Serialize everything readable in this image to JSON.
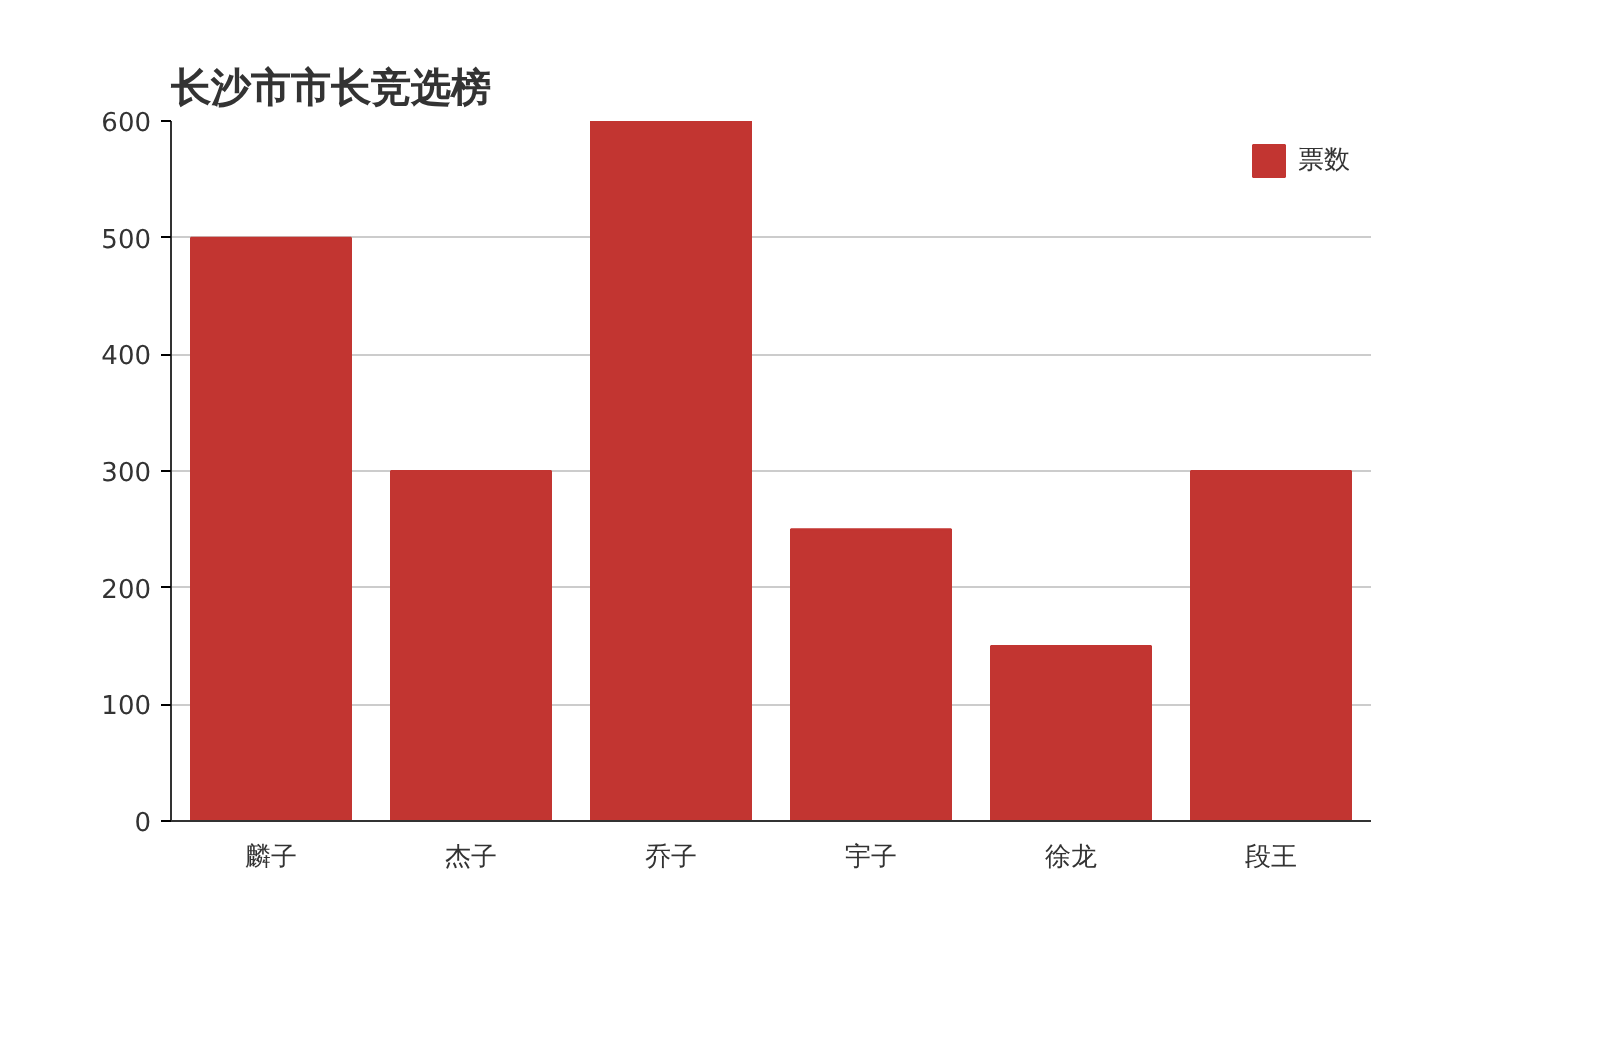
{
  "chart_data": {
    "type": "bar",
    "title": "长沙市市长竞选榜",
    "categories": [
      "麟子",
      "杰子",
      "乔子",
      "宇子",
      "徐龙",
      "段王"
    ],
    "series": [
      {
        "name": "票数",
        "color": "#c23531",
        "values": [
          500,
          300,
          600,
          250,
          150,
          300
        ]
      }
    ],
    "ylim": [
      0,
      600
    ],
    "yticks": [
      0,
      100,
      200,
      300,
      400,
      500,
      600
    ],
    "grid": "y",
    "legend": "top right"
  }
}
